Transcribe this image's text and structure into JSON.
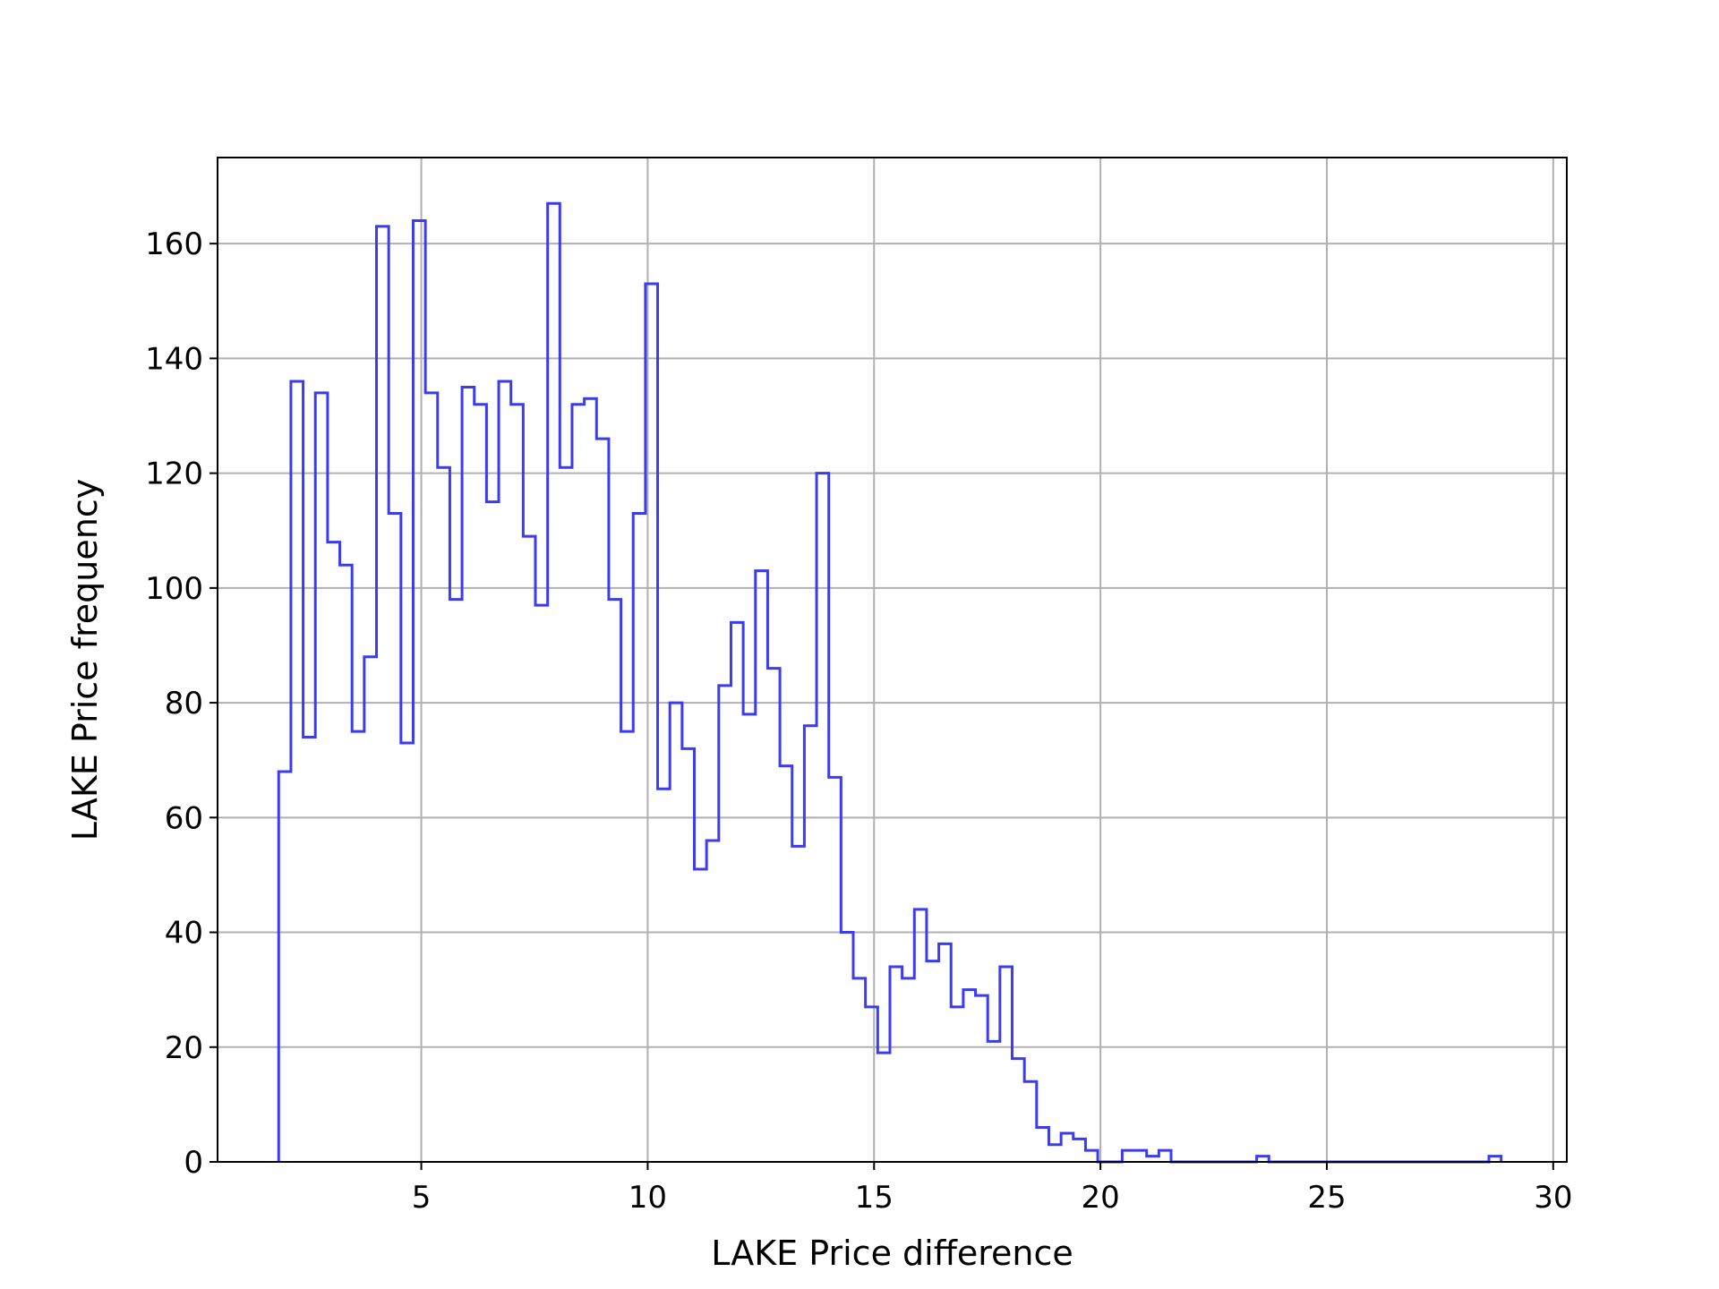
{
  "chart_data": {
    "type": "histogram",
    "title": "",
    "xlabel": "LAKE Price difference",
    "ylabel": "LAKE Price frequency",
    "xlim": [
      0.5,
      30.3
    ],
    "ylim": [
      0,
      175
    ],
    "xticks": [
      5,
      10,
      15,
      20,
      25,
      30
    ],
    "yticks": [
      0,
      20,
      40,
      60,
      80,
      100,
      120,
      140,
      160
    ],
    "grid": true,
    "legend": "none",
    "bin_start": 1.85,
    "bin_width": 0.27,
    "values": [
      68,
      136,
      74,
      134,
      108,
      104,
      75,
      88,
      163,
      113,
      73,
      164,
      134,
      121,
      98,
      135,
      132,
      115,
      136,
      132,
      109,
      97,
      167,
      121,
      132,
      133,
      126,
      98,
      75,
      113,
      153,
      65,
      80,
      72,
      51,
      56,
      83,
      94,
      78,
      103,
      86,
      69,
      55,
      76,
      120,
      67,
      40,
      32,
      27,
      19,
      34,
      32,
      44,
      35,
      38,
      27,
      30,
      29,
      21,
      34,
      18,
      14,
      6,
      3,
      5,
      4,
      2,
      0,
      0,
      2,
      2,
      1,
      2,
      0,
      0,
      0,
      0,
      0,
      0,
      0,
      1,
      0,
      0,
      0,
      0,
      0,
      0,
      0,
      0,
      0,
      0,
      0,
      0,
      0,
      0,
      0,
      0,
      0,
      0,
      1
    ]
  },
  "colors": {
    "series": "#3b3bf0",
    "grid": "#b0b0b0",
    "axes": "#000000"
  }
}
